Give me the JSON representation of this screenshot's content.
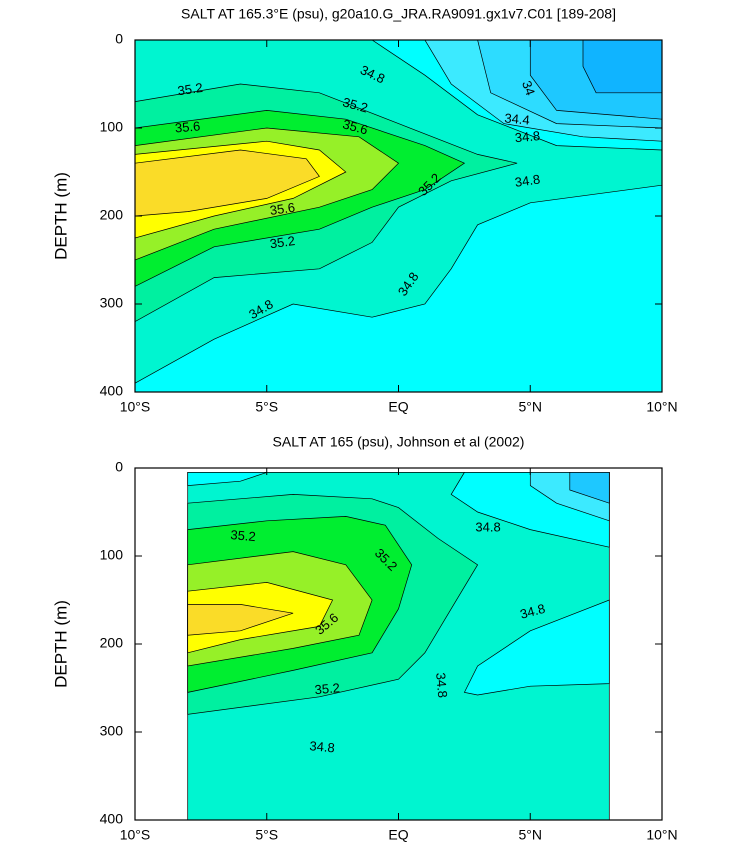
{
  "chart_data": [
    {
      "type": "contour",
      "title": "SALT AT 165.3°E (psu), g20a10.G_JRA.RA9091.gx1v7.C01 [189-208]",
      "y_label": "DEPTH (m)",
      "xlim": [
        -10,
        10
      ],
      "ylim": [
        400,
        0
      ],
      "xticks": [
        {
          "value": -10,
          "label": "10°S"
        },
        {
          "value": -5,
          "label": "5°S"
        },
        {
          "value": 0,
          "label": "EQ"
        },
        {
          "value": 5,
          "label": "5°N"
        },
        {
          "value": 10,
          "label": "10°N"
        }
      ],
      "yticks": [
        0,
        100,
        200,
        300,
        400
      ],
      "levels": [
        34,
        34.2,
        34.4,
        34.6,
        34.8,
        35,
        35.2,
        35.4,
        35.6,
        35.8
      ],
      "colors": [
        "#10b4ff",
        "#1ec8ff",
        "#2ddcff",
        "#3ceaff",
        "#00ffff",
        "#00f5d0",
        "#00f0a0",
        "#00ee30",
        "#96f028",
        "#ffff00",
        "#fadc28"
      ]
    },
    {
      "type": "contour",
      "title": "SALT AT 165 (psu), Johnson et al (2002)",
      "y_label": "DEPTH (m)",
      "xlim": [
        -10,
        10
      ],
      "ylim": [
        400,
        0
      ],
      "xticks": [
        {
          "value": -10,
          "label": "10°S"
        },
        {
          "value": -5,
          "label": "5°S"
        },
        {
          "value": 0,
          "label": "EQ"
        },
        {
          "value": 5,
          "label": "5°N"
        },
        {
          "value": 10,
          "label": "10°N"
        }
      ],
      "yticks": [
        0,
        100,
        200,
        300,
        400
      ],
      "levels": [
        34,
        34.2,
        34.4,
        34.6,
        34.8,
        35,
        35.2,
        35.4,
        35.6,
        35.8
      ],
      "colors": [
        "#10b4ff",
        "#1ec8ff",
        "#2ddcff",
        "#3ceaff",
        "#00ffff",
        "#00f5d0",
        "#00f0a0",
        "#00ee30",
        "#96f028",
        "#ffff00",
        "#fadc28"
      ]
    }
  ]
}
